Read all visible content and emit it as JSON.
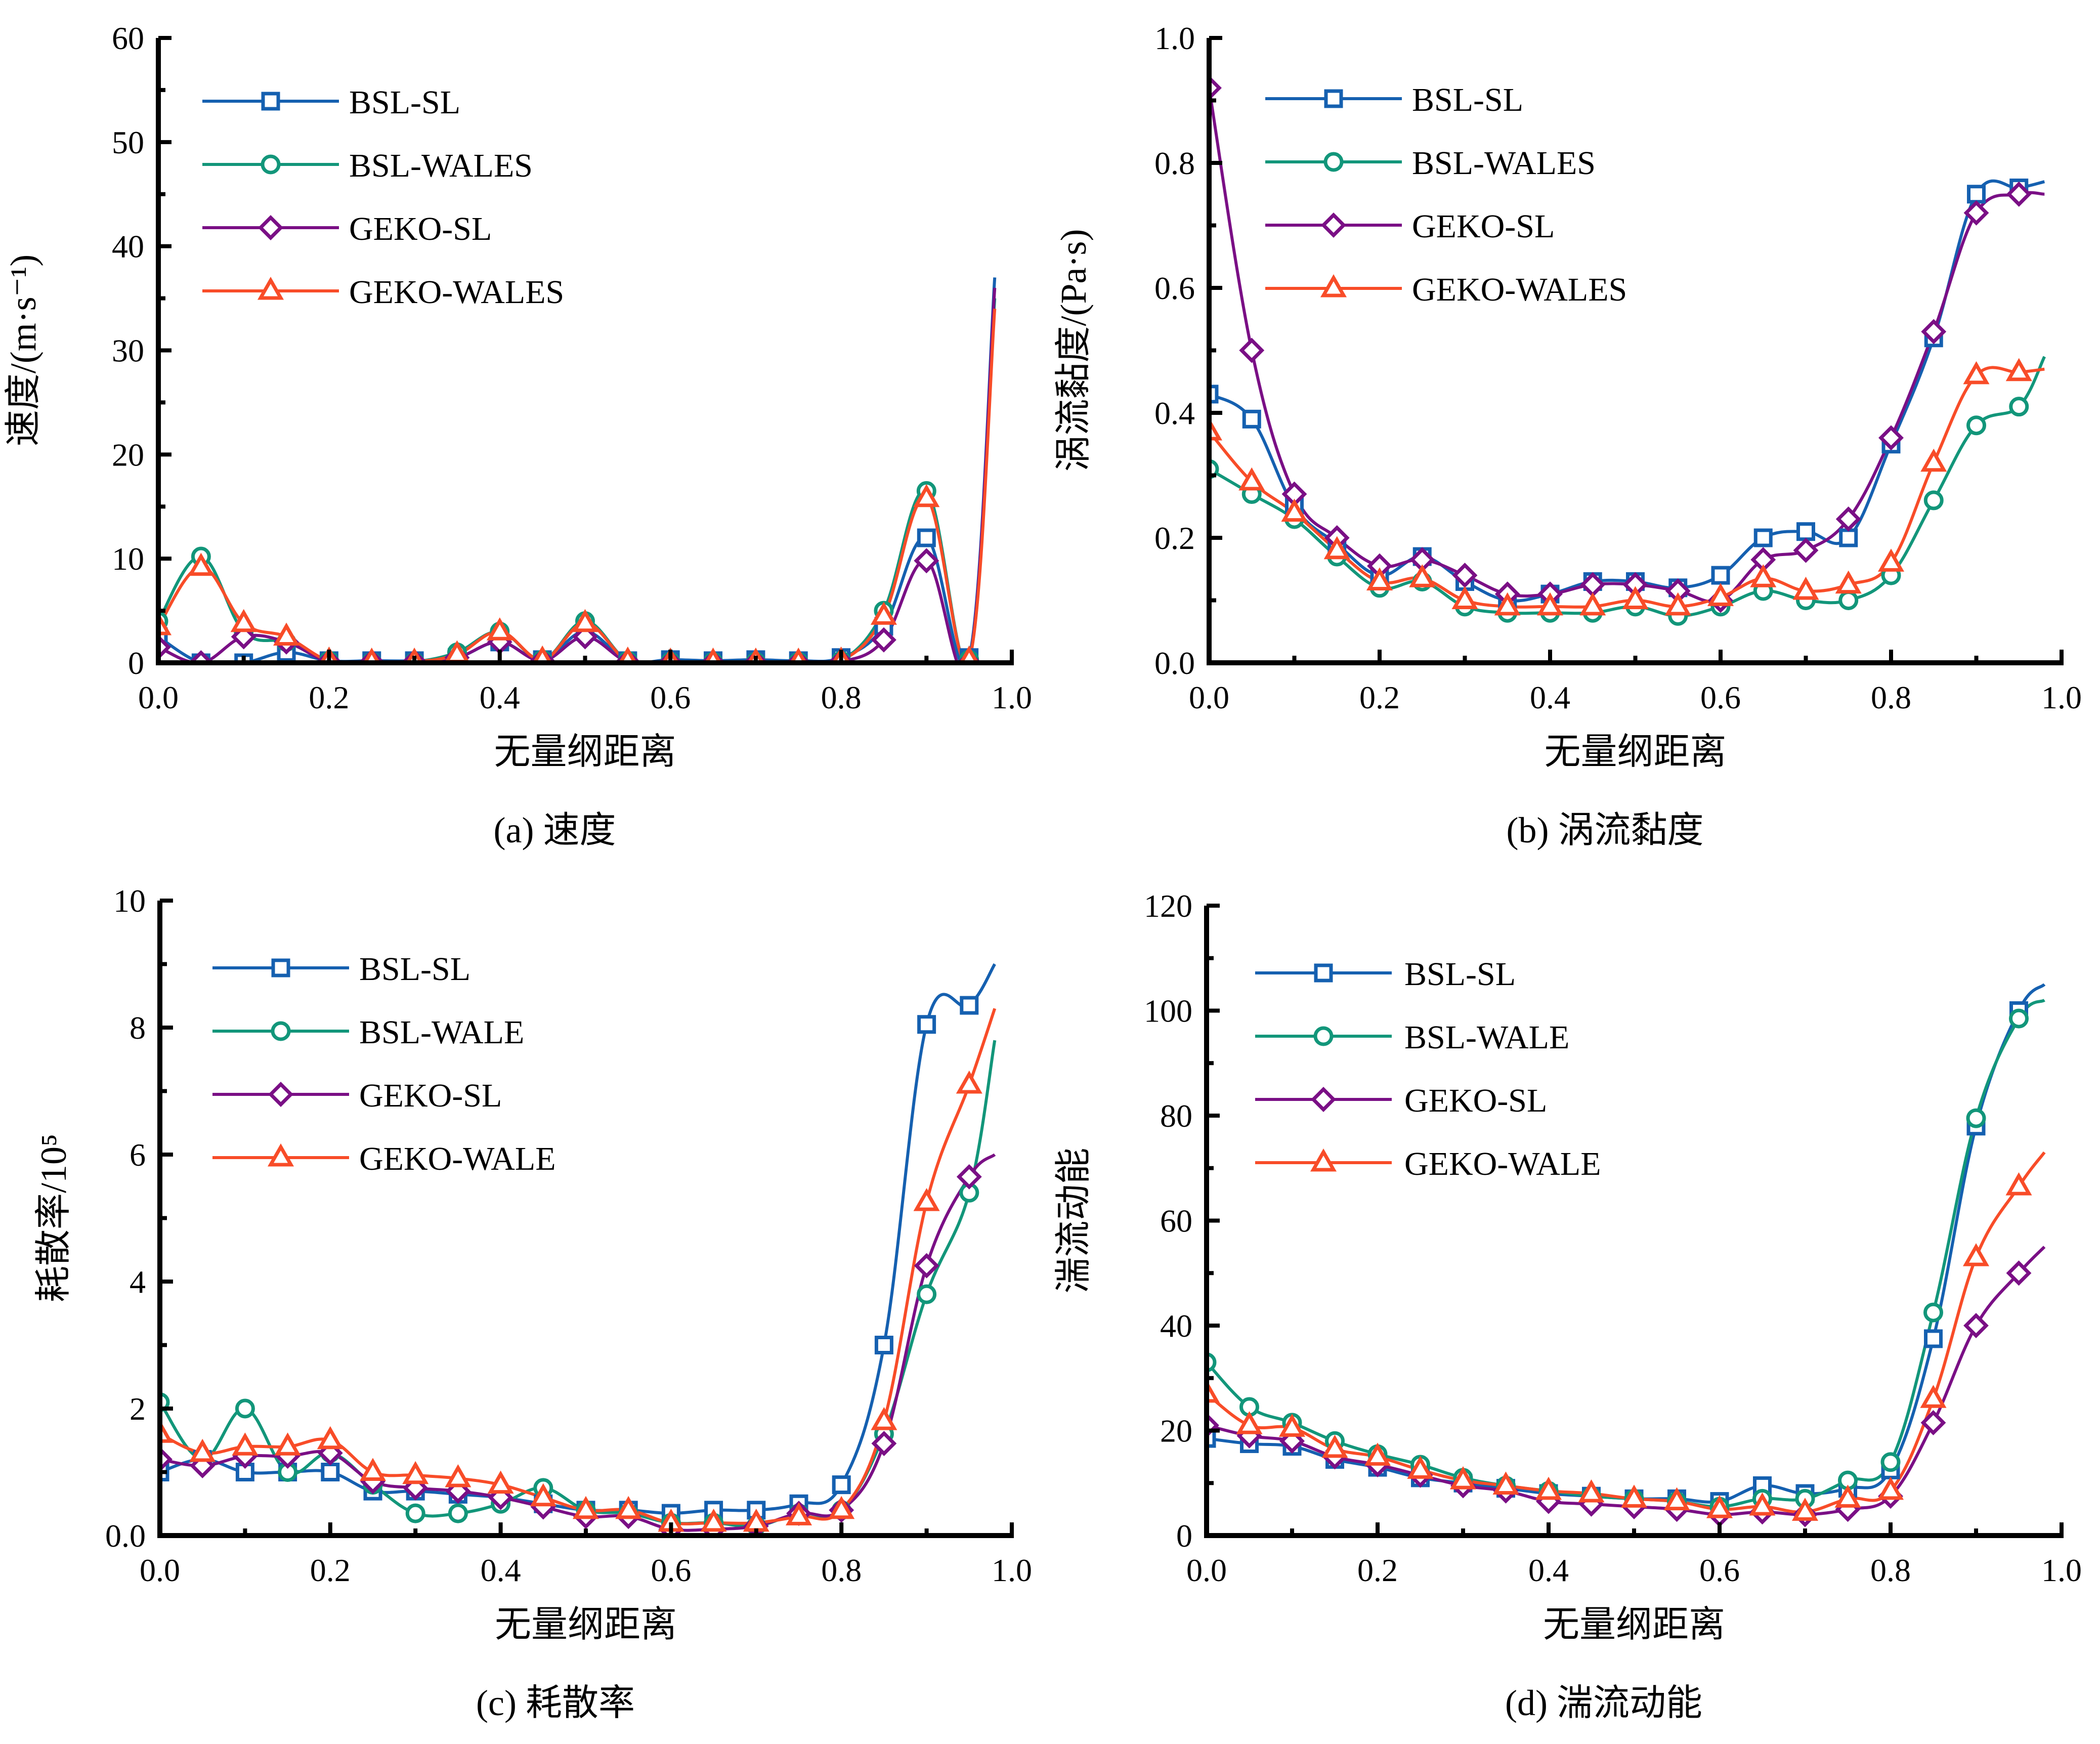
{
  "colors": {
    "BSL-SL": "#1560b0",
    "BSL-WALES": "#12967a",
    "GEKO-SL": "#7a0f85",
    "GEKO-WALES": "#f84c28"
  },
  "chart_data": [
    {
      "id": "a",
      "type": "line",
      "caption": "(a) 速度",
      "title": "",
      "xlabel": "无量纲距离",
      "ylabel": "速度/(m·s⁻¹)",
      "xlim": [
        0,
        1.0
      ],
      "ylim": [
        0,
        60
      ],
      "xticks": [
        "0.0",
        "0.2",
        "0.4",
        "0.6",
        "0.8",
        "1.0"
      ],
      "yticks": [
        "0",
        "10",
        "20",
        "30",
        "40",
        "50",
        "60"
      ],
      "grid": false,
      "legend_position": "top-left",
      "x": [
        0.0,
        0.05,
        0.1,
        0.15,
        0.2,
        0.25,
        0.3,
        0.35,
        0.4,
        0.45,
        0.5,
        0.55,
        0.6,
        0.65,
        0.7,
        0.75,
        0.8,
        0.85,
        0.9,
        0.95
      ],
      "series": [
        {
          "name": "BSL-SL",
          "marker": "square",
          "values": [
            2.5,
            0.0,
            0.0,
            1.0,
            0.2,
            0.2,
            0.2,
            0.5,
            2.0,
            0.3,
            3.0,
            0.2,
            0.3,
            0.2,
            0.3,
            0.2,
            0.5,
            3.5,
            12.0,
            0.5
          ],
          "end": [
            0.98,
            37
          ]
        },
        {
          "name": "BSL-WALES",
          "marker": "circle",
          "values": [
            4.0,
            10.2,
            3.0,
            2.0,
            0.2,
            0.1,
            0.1,
            1.0,
            3.0,
            0.3,
            4.0,
            0.2,
            0.1,
            0.1,
            0.1,
            0.1,
            0.2,
            5.0,
            16.5,
            0.3
          ],
          "end": [
            0.98,
            35
          ]
        },
        {
          "name": "GEKO-SL",
          "marker": "diamond",
          "values": [
            1.5,
            0.0,
            2.5,
            2.0,
            0.1,
            0.1,
            0.1,
            0.5,
            2.0,
            0.2,
            2.5,
            0.1,
            0.0,
            0.0,
            0.0,
            0.0,
            0.1,
            2.2,
            9.8,
            0.0
          ],
          "end": [
            0.98,
            36
          ]
        },
        {
          "name": "GEKO-WALES",
          "marker": "triangle",
          "values": [
            3.5,
            9.2,
            3.8,
            2.5,
            0.2,
            0.1,
            0.1,
            0.8,
            3.0,
            0.3,
            3.8,
            0.2,
            0.1,
            0.1,
            0.1,
            0.1,
            0.2,
            4.5,
            15.8,
            0.3
          ],
          "end": [
            0.98,
            34
          ]
        }
      ]
    },
    {
      "id": "b",
      "type": "line",
      "caption": "(b) 涡流黏度",
      "title": "",
      "xlabel": "无量纲距离",
      "ylabel": "涡流黏度/(Pa·s)",
      "xlim": [
        0,
        1.0
      ],
      "ylim": [
        0,
        1.0
      ],
      "xticks": [
        "0.0",
        "0.2",
        "0.4",
        "0.6",
        "0.8",
        "1.0"
      ],
      "yticks": [
        "0.0",
        "0.2",
        "0.4",
        "0.6",
        "0.8",
        "1.0"
      ],
      "grid": false,
      "legend_position": "top-left",
      "x": [
        0.0,
        0.05,
        0.1,
        0.15,
        0.2,
        0.25,
        0.3,
        0.35,
        0.4,
        0.45,
        0.5,
        0.55,
        0.6,
        0.65,
        0.7,
        0.75,
        0.8,
        0.85,
        0.9,
        0.95
      ],
      "series": [
        {
          "name": "BSL-SL",
          "marker": "square",
          "values": [
            0.43,
            0.39,
            0.25,
            0.19,
            0.14,
            0.17,
            0.13,
            0.1,
            0.11,
            0.13,
            0.13,
            0.12,
            0.14,
            0.2,
            0.21,
            0.2,
            0.35,
            0.52,
            0.75,
            0.76
          ],
          "end": [
            0.98,
            0.77
          ]
        },
        {
          "name": "BSL-WALES",
          "marker": "circle",
          "values": [
            0.31,
            0.27,
            0.23,
            0.17,
            0.12,
            0.13,
            0.09,
            0.08,
            0.08,
            0.08,
            0.09,
            0.075,
            0.09,
            0.115,
            0.1,
            0.1,
            0.14,
            0.26,
            0.38,
            0.41
          ],
          "end": [
            0.98,
            0.49
          ]
        },
        {
          "name": "GEKO-SL",
          "marker": "diamond",
          "values": [
            0.92,
            0.5,
            0.27,
            0.2,
            0.155,
            0.165,
            0.14,
            0.11,
            0.11,
            0.125,
            0.125,
            0.115,
            0.1,
            0.165,
            0.18,
            0.23,
            0.36,
            0.53,
            0.72,
            0.75
          ],
          "end": [
            0.98,
            0.75
          ]
        },
        {
          "name": "GEKO-WALES",
          "marker": "triangle",
          "values": [
            0.37,
            0.29,
            0.24,
            0.18,
            0.13,
            0.135,
            0.1,
            0.09,
            0.09,
            0.09,
            0.1,
            0.09,
            0.105,
            0.135,
            0.115,
            0.125,
            0.16,
            0.32,
            0.46,
            0.465
          ],
          "end": [
            0.98,
            0.47
          ]
        }
      ]
    },
    {
      "id": "c",
      "type": "line",
      "caption": "(c) 耗散率",
      "title": "",
      "xlabel": "无量纲距离",
      "ylabel": "耗散率/10⁵",
      "xlim": [
        0,
        1.0
      ],
      "ylim": [
        0,
        10
      ],
      "xticks": [
        "0.0",
        "0.2",
        "0.4",
        "0.6",
        "0.8",
        "1.0"
      ],
      "yticks": [
        "0.0",
        "2",
        "4",
        "6",
        "8",
        "10"
      ],
      "grid": false,
      "legend_position": "top-left",
      "x": [
        0.0,
        0.05,
        0.1,
        0.15,
        0.2,
        0.25,
        0.3,
        0.35,
        0.4,
        0.45,
        0.5,
        0.55,
        0.6,
        0.65,
        0.7,
        0.75,
        0.8,
        0.85,
        0.9,
        0.95
      ],
      "series": [
        {
          "name": "BSL-SL",
          "marker": "square",
          "values": [
            1.0,
            1.2,
            1.0,
            1.0,
            1.0,
            0.7,
            0.7,
            0.65,
            0.6,
            0.5,
            0.4,
            0.4,
            0.35,
            0.4,
            0.4,
            0.5,
            0.8,
            3.0,
            8.05,
            8.35
          ],
          "end": [
            0.98,
            9.0
          ]
        },
        {
          "name": "BSL-WALE",
          "marker": "circle",
          "values": [
            2.1,
            1.2,
            2.0,
            1.0,
            1.3,
            0.8,
            0.35,
            0.35,
            0.5,
            0.75,
            0.4,
            0.35,
            0.2,
            0.2,
            0.15,
            0.35,
            0.4,
            1.6,
            3.8,
            5.4
          ],
          "end": [
            0.98,
            7.8
          ]
        },
        {
          "name": "GEKO-SL",
          "marker": "diamond",
          "values": [
            1.2,
            1.1,
            1.25,
            1.25,
            1.3,
            0.85,
            0.75,
            0.7,
            0.6,
            0.45,
            0.3,
            0.3,
            0.1,
            0.1,
            0.15,
            0.35,
            0.4,
            1.45,
            4.25,
            5.65
          ],
          "end": [
            0.98,
            6.0
          ]
        },
        {
          "name": "GEKO-WALE",
          "marker": "triangle",
          "values": [
            1.6,
            1.3,
            1.4,
            1.4,
            1.5,
            1.0,
            0.95,
            0.9,
            0.8,
            0.6,
            0.4,
            0.4,
            0.2,
            0.2,
            0.2,
            0.3,
            0.4,
            1.8,
            5.25,
            7.1
          ],
          "end": [
            0.98,
            8.3
          ]
        }
      ]
    },
    {
      "id": "d",
      "type": "line",
      "caption": "(d) 湍流动能",
      "title": "",
      "xlabel": "无量纲距离",
      "ylabel": "湍流动能",
      "xlim": [
        0,
        1.0
      ],
      "ylim": [
        0,
        120
      ],
      "xticks": [
        "0.0",
        "0.2",
        "0.4",
        "0.6",
        "0.8",
        "1.0"
      ],
      "yticks": [
        "0",
        "20",
        "40",
        "60",
        "80",
        "100",
        "120"
      ],
      "grid": false,
      "legend_position": "top-left",
      "x": [
        0.0,
        0.05,
        0.1,
        0.15,
        0.2,
        0.25,
        0.3,
        0.35,
        0.4,
        0.45,
        0.5,
        0.55,
        0.6,
        0.65,
        0.7,
        0.75,
        0.8,
        0.85,
        0.9,
        0.95
      ],
      "series": [
        {
          "name": "BSL-SL",
          "marker": "square",
          "values": [
            18.5,
            17.5,
            17.0,
            14.5,
            13.0,
            11.0,
            10.0,
            9.0,
            8.0,
            7.5,
            7.0,
            7.0,
            6.5,
            9.5,
            8.0,
            9.0,
            12.5,
            37.5,
            78.0,
            100.0
          ],
          "end": [
            0.98,
            105
          ]
        },
        {
          "name": "BSL-WALE",
          "marker": "circle",
          "values": [
            33.0,
            24.5,
            21.5,
            18.0,
            15.5,
            13.5,
            11.0,
            9.5,
            8.5,
            7.5,
            7.0,
            6.5,
            5.5,
            7.0,
            7.0,
            10.5,
            14.0,
            42.5,
            79.5,
            98.5
          ],
          "end": [
            0.98,
            102
          ]
        },
        {
          "name": "GEKO-SL",
          "marker": "diamond",
          "values": [
            21.0,
            19.0,
            18.0,
            15.0,
            13.5,
            11.5,
            9.5,
            8.5,
            6.5,
            6.0,
            5.5,
            5.0,
            4.0,
            4.5,
            4.0,
            5.0,
            7.5,
            21.5,
            40.0,
            50.0
          ],
          "end": [
            0.98,
            55
          ]
        },
        {
          "name": "GEKO-WALE",
          "marker": "triangle",
          "values": [
            27.0,
            21.0,
            20.5,
            16.5,
            15.0,
            12.5,
            10.5,
            9.5,
            8.5,
            8.0,
            7.0,
            6.5,
            5.0,
            5.5,
            4.5,
            7.0,
            8.5,
            26.0,
            53.0,
            66.5
          ],
          "end": [
            0.98,
            73
          ]
        }
      ]
    }
  ]
}
